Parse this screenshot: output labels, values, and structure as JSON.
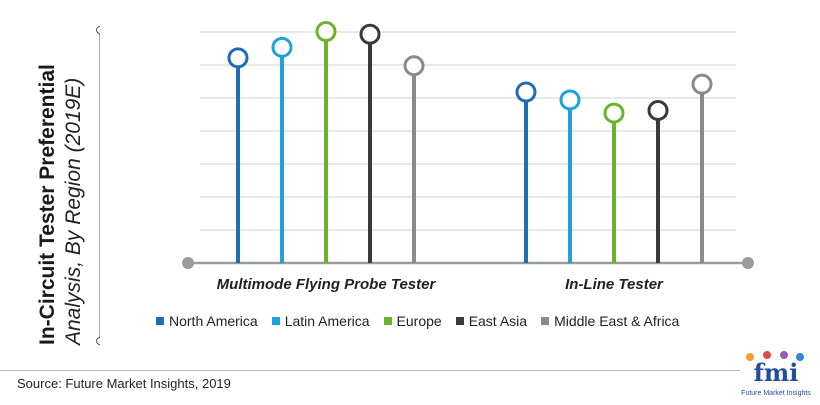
{
  "title": {
    "line1": "In-Circuit Tester Preferential",
    "line2": "Analysis, By Region (2019E)"
  },
  "source": "Source: Future Market Insights, 2019",
  "logo": {
    "text": "fmi",
    "tagline": "Future Market Insights",
    "colors": [
      "#f0a030",
      "#e04a4a",
      "#9b59b6",
      "#2e86de"
    ]
  },
  "chart_data": {
    "type": "lollipop",
    "categories": [
      "Multimode Flying Probe Tester",
      "In-Line Tester"
    ],
    "series": [
      {
        "name": "North America",
        "color": "#1f6eb5",
        "values": [
          78,
          65
        ]
      },
      {
        "name": "Latin America",
        "color": "#1fa2dc",
        "values": [
          82,
          62
        ]
      },
      {
        "name": "Europe",
        "color": "#6ab42d",
        "values": [
          88,
          57
        ]
      },
      {
        "name": "East Asia",
        "color": "#3a3a3a",
        "values": [
          87,
          58
        ]
      },
      {
        "name": "Middle East & Africa",
        "color": "#8a8a8a",
        "values": [
          75,
          68
        ]
      }
    ],
    "ylim": [
      0,
      100
    ],
    "grid": true,
    "legend_position": "bottom"
  }
}
